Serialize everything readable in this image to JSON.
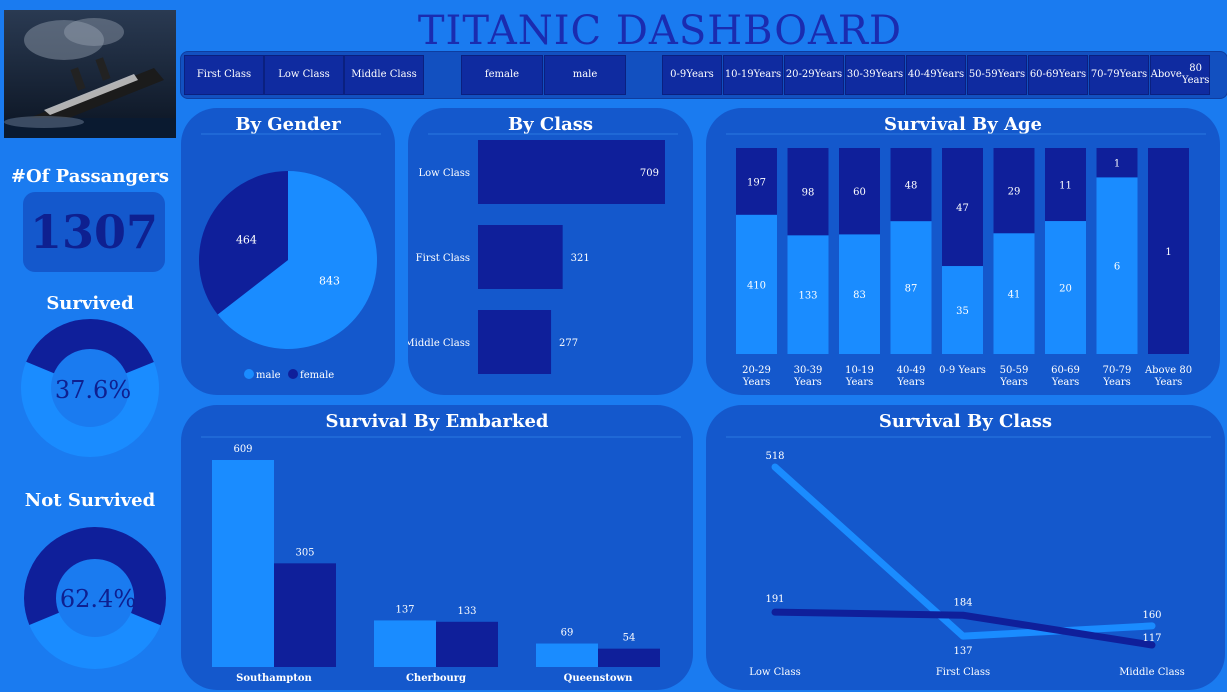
{
  "title": "TITANIC DASHBOARD",
  "colors": {
    "light": "#1a8cff",
    "dark": "#0f1f9a",
    "panel": "#1458cc",
    "bg": "#1a7bf0"
  },
  "slicers": {
    "class": [
      "First Class",
      "Low Class",
      "Middle Class"
    ],
    "gender": [
      "female",
      "male"
    ],
    "age": [
      [
        "0-9",
        "Years"
      ],
      [
        "10-19",
        "Years"
      ],
      [
        "20-29",
        "Years"
      ],
      [
        "30-39",
        "Years"
      ],
      [
        "40-49",
        "Years"
      ],
      [
        "50-59",
        "Years"
      ],
      [
        "60-69",
        "Years"
      ],
      [
        "70-79",
        "Years"
      ],
      [
        "Above",
        "80 Years"
      ]
    ]
  },
  "kpi": {
    "passengers_label": "#Of Passangers",
    "passengers_value": "1307",
    "survived_label": "Survived",
    "survived_value": "37.6%",
    "survived_fraction": 0.376,
    "not_survived_label": "Not Survived",
    "not_survived_value": "62.4%",
    "not_survived_fraction": 0.624
  },
  "chart_data": [
    {
      "type": "pie",
      "title": "By Gender",
      "labels": [
        "male",
        "female"
      ],
      "values": [
        843,
        464
      ],
      "legend": "bottom"
    },
    {
      "type": "bar",
      "orientation": "horizontal",
      "title": "By Class",
      "categories": [
        "Low Class",
        "First Class",
        "Middle Class"
      ],
      "values": [
        709,
        321,
        277
      ]
    },
    {
      "type": "bar",
      "stacked": true,
      "title": "Survival By Age",
      "categories": [
        [
          "20-29",
          "Years"
        ],
        [
          "30-39",
          "Years"
        ],
        [
          "10-19",
          "Years"
        ],
        [
          "40-49",
          "Years"
        ],
        [
          "0-9 Years"
        ],
        [
          "50-59",
          "Years"
        ],
        [
          "60-69",
          "Years"
        ],
        [
          "70-79",
          "Years"
        ],
        [
          "Above 80",
          "Years"
        ]
      ],
      "series": [
        {
          "values": [
            410,
            133,
            83,
            87,
            35,
            41,
            20,
            6,
            0
          ]
        },
        {
          "values": [
            197,
            98,
            60,
            48,
            47,
            29,
            11,
            1,
            1
          ]
        }
      ]
    },
    {
      "type": "bar",
      "title": "Survival By Embarked",
      "categories": [
        "Southampton",
        "Cherbourg",
        "Queenstown"
      ],
      "series": [
        {
          "values": [
            609,
            137,
            69
          ]
        },
        {
          "values": [
            305,
            133,
            54
          ]
        }
      ],
      "ylim": [
        0,
        609
      ]
    },
    {
      "type": "line",
      "title": "Survival By Class",
      "categories": [
        "Low Class",
        "First Class",
        "Middle Class"
      ],
      "series": [
        {
          "values": [
            518,
            137,
            160
          ]
        },
        {
          "values": [
            191,
            184,
            117
          ]
        }
      ]
    }
  ]
}
